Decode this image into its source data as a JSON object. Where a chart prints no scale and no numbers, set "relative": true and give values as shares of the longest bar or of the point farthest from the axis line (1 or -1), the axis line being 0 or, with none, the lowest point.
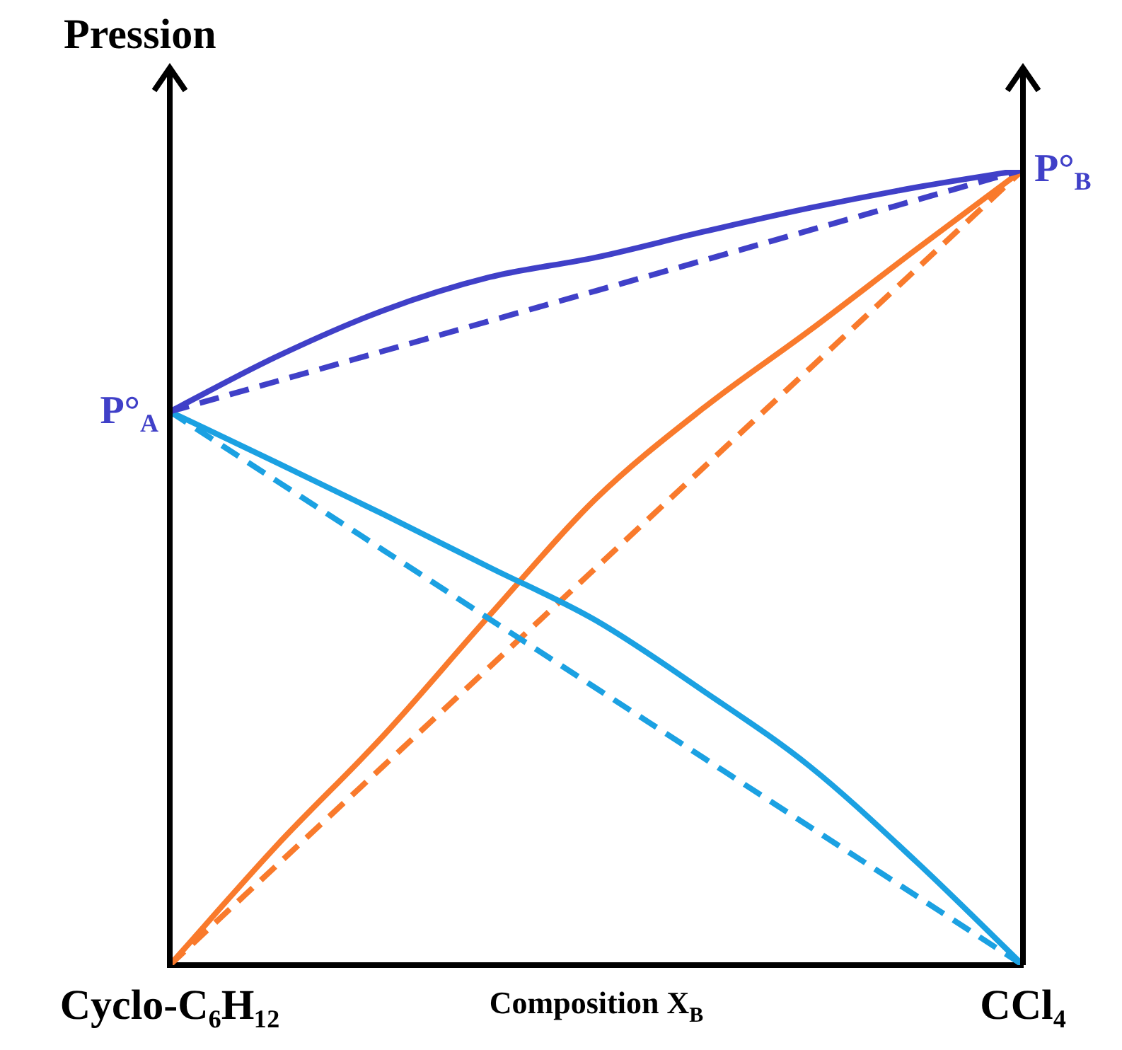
{
  "chart_data": {
    "type": "line",
    "relative": true,
    "ylabel": "Pression",
    "xlabel": "Composition X$_{B}$",
    "categories": [
      "Cyclo-C₆H₁₂",
      null,
      null,
      null,
      null,
      null,
      null,
      null,
      "CCl₄"
    ],
    "legend": false,
    "marker": "none",
    "annotations": [
      {
        "text": "P°$_{A}$",
        "x": "Cyclo-C₆H₁₂",
        "y": 0.696
      },
      {
        "text": "P°$_{B}$",
        "x": "CCl₄",
        "y": 1
      }
    ],
    "series": [
      {
        "color": "#4040c8",
        "line_style": "solid",
        "values": [
          0.696,
          0.765,
          0.823,
          0.865,
          0.89,
          0.922,
          0.952,
          0.978,
          1
        ]
      },
      {
        "color": "#4040c8",
        "line_style": "dashed",
        "values": [
          0.696,
          0.734,
          0.772,
          0.81,
          0.848,
          0.886,
          0.924,
          0.962,
          1
        ]
      },
      {
        "color": "#1ba1e2",
        "line_style": "solid",
        "values": [
          0.696,
          0.632,
          0.567,
          0.5,
          0.433,
          0.345,
          0.25,
          0.13,
          0
        ]
      },
      {
        "color": "#1ba1e2",
        "line_style": "dashed",
        "values": [
          0.696,
          0.609,
          0.522,
          0.435,
          0.348,
          0.261,
          0.174,
          0.087,
          0
        ]
      },
      {
        "color": "#f97a2c",
        "line_style": "solid",
        "values": [
          0,
          0.15,
          0.288,
          0.44,
          0.587,
          0.7,
          0.798,
          0.9,
          1
        ]
      },
      {
        "color": "#f97a2c",
        "line_style": "dashed",
        "values": [
          0,
          0.125,
          0.25,
          0.375,
          0.5,
          0.625,
          0.75,
          0.875,
          1
        ]
      }
    ]
  }
}
